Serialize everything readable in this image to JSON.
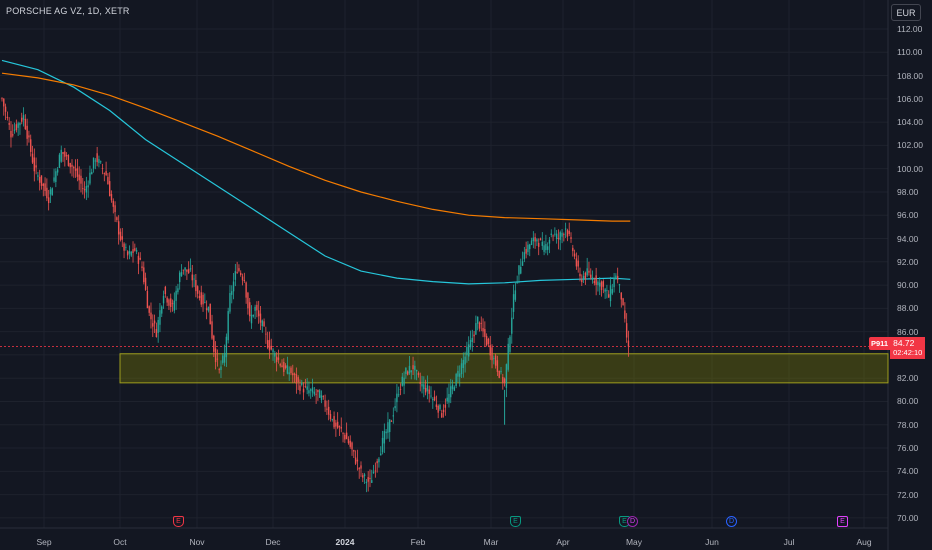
{
  "header": {
    "title": "PORSCHE AG VZ, 1D, XETR"
  },
  "currency_button": {
    "label": "EUR"
  },
  "price_tag": {
    "symbol": "P911",
    "price": "84.72",
    "countdown": "02:42:10"
  },
  "colors": {
    "up": "#26a69a",
    "down": "#ef5350",
    "sma_fast": "#26c6da",
    "sma_slow": "#f57c00",
    "zone": "#808000"
  },
  "chart_data": {
    "type": "candlestick",
    "symbol": "PORSCHE AG VZ",
    "interval": "1D",
    "exchange": "XETR",
    "currency": "EUR",
    "last_price": 84.72,
    "ylim": [
      69,
      113
    ],
    "y_ticks": [
      "112.00",
      "110.00",
      "108.00",
      "106.00",
      "104.00",
      "102.00",
      "100.00",
      "98.00",
      "96.00",
      "94.00",
      "92.00",
      "90.00",
      "88.00",
      "86.00",
      "84.00",
      "82.00",
      "80.00",
      "78.00",
      "76.00",
      "74.00",
      "72.00",
      "70.00"
    ],
    "x_ticks": [
      {
        "label": "Sep",
        "bold": false
      },
      {
        "label": "Oct",
        "bold": false
      },
      {
        "label": "Nov",
        "bold": false
      },
      {
        "label": "Dec",
        "bold": false
      },
      {
        "label": "2024",
        "bold": true
      },
      {
        "label": "Feb",
        "bold": false
      },
      {
        "label": "Mar",
        "bold": false
      },
      {
        "label": "Apr",
        "bold": false
      },
      {
        "label": "May",
        "bold": false
      },
      {
        "label": "Jun",
        "bold": false
      },
      {
        "label": "Jul",
        "bold": false
      },
      {
        "label": "Aug",
        "bold": false
      }
    ],
    "support_zone": [
      81.6,
      84.1
    ],
    "path_points": [
      [
        0,
        106.0
      ],
      [
        5,
        103.0
      ],
      [
        12,
        104.5
      ],
      [
        18,
        100.0
      ],
      [
        26,
        97.5
      ],
      [
        33,
        101.5
      ],
      [
        40,
        100.0
      ],
      [
        46,
        98.0
      ],
      [
        52,
        101.0
      ],
      [
        58,
        99.5
      ],
      [
        62,
        96.5
      ],
      [
        67,
        93.5
      ],
      [
        70,
        92.5
      ],
      [
        74,
        93.0
      ],
      [
        78,
        91.5
      ],
      [
        82,
        87.5
      ],
      [
        86,
        86.0
      ],
      [
        90,
        89.5
      ],
      [
        95,
        88.0
      ],
      [
        100,
        91.5
      ],
      [
        105,
        91.0
      ],
      [
        110,
        89.0
      ],
      [
        115,
        88.0
      ],
      [
        118,
        84.5
      ],
      [
        121,
        82.5
      ],
      [
        124,
        84.0
      ],
      [
        127,
        89.0
      ],
      [
        131,
        91.5
      ],
      [
        135,
        90.5
      ],
      [
        138,
        87.0
      ],
      [
        141,
        88.0
      ],
      [
        145,
        86.5
      ],
      [
        148,
        85.0
      ],
      [
        152,
        84.0
      ],
      [
        157,
        82.8
      ],
      [
        161,
        82.5
      ],
      [
        165,
        81.5
      ],
      [
        169,
        81.0
      ],
      [
        173,
        80.8
      ],
      [
        177,
        80.5
      ],
      [
        181,
        79.5
      ],
      [
        185,
        78.0
      ],
      [
        189,
        77.5
      ],
      [
        193,
        76.5
      ],
      [
        197,
        75.0
      ],
      [
        201,
        73.5
      ],
      [
        205,
        73.0
      ],
      [
        209,
        75.0
      ],
      [
        213,
        77.0
      ],
      [
        217,
        78.5
      ],
      [
        221,
        81.0
      ],
      [
        225,
        82.5
      ],
      [
        229,
        83.0
      ],
      [
        233,
        81.5
      ],
      [
        237,
        81.0
      ],
      [
        241,
        80.0
      ],
      [
        245,
        79.0
      ],
      [
        249,
        80.5
      ],
      [
        253,
        82.0
      ],
      [
        257,
        83.5
      ],
      [
        261,
        85.0
      ],
      [
        265,
        87.0
      ],
      [
        269,
        85.5
      ],
      [
        273,
        84.0
      ],
      [
        277,
        82.5
      ],
      [
        280,
        81.5
      ],
      [
        284,
        87.5
      ],
      [
        286,
        90.0
      ],
      [
        290,
        92.5
      ],
      [
        294,
        93.5
      ],
      [
        298,
        94.0
      ],
      [
        302,
        93.0
      ],
      [
        306,
        94.5
      ],
      [
        310,
        94.0
      ],
      [
        314,
        95.0
      ],
      [
        318,
        93.0
      ],
      [
        322,
        90.5
      ],
      [
        326,
        91.0
      ],
      [
        330,
        90.5
      ],
      [
        334,
        90.0
      ],
      [
        338,
        89.0
      ],
      [
        342,
        91.0
      ],
      [
        345,
        89.0
      ],
      [
        348,
        85.5
      ],
      [
        349,
        84.72
      ]
    ],
    "series": [
      {
        "name": "",
        "color": "#26c6da",
        "points": [
          [
            0,
            109.3
          ],
          [
            20,
            108.5
          ],
          [
            40,
            107.0
          ],
          [
            60,
            105.0
          ],
          [
            80,
            102.5
          ],
          [
            100,
            100.5
          ],
          [
            120,
            98.5
          ],
          [
            140,
            96.5
          ],
          [
            160,
            94.5
          ],
          [
            180,
            92.5
          ],
          [
            200,
            91.2
          ],
          [
            220,
            90.6
          ],
          [
            240,
            90.3
          ],
          [
            260,
            90.1
          ],
          [
            280,
            90.2
          ],
          [
            300,
            90.4
          ],
          [
            320,
            90.5
          ],
          [
            340,
            90.6
          ],
          [
            350,
            90.5
          ]
        ]
      },
      {
        "name": "",
        "color": "#f57c00",
        "points": [
          [
            0,
            108.2
          ],
          [
            20,
            107.8
          ],
          [
            40,
            107.2
          ],
          [
            60,
            106.3
          ],
          [
            80,
            105.2
          ],
          [
            100,
            104.0
          ],
          [
            120,
            102.8
          ],
          [
            140,
            101.5
          ],
          [
            160,
            100.2
          ],
          [
            180,
            99.0
          ],
          [
            200,
            98.0
          ],
          [
            220,
            97.2
          ],
          [
            240,
            96.5
          ],
          [
            260,
            96.0
          ],
          [
            280,
            95.8
          ],
          [
            300,
            95.7
          ],
          [
            320,
            95.6
          ],
          [
            340,
            95.5
          ],
          [
            350,
            95.5
          ]
        ]
      }
    ]
  },
  "events": [
    {
      "type": "earnings",
      "label": "E",
      "color": "earn-red"
    },
    {
      "type": "earnings",
      "label": "E",
      "color": "earn-green"
    },
    {
      "type": "earnings",
      "label": "E",
      "color": "earn-green"
    },
    {
      "type": "dividend",
      "label": "D",
      "color": "div-purple"
    },
    {
      "type": "dividend",
      "label": "D",
      "color": "div-blue"
    },
    {
      "type": "earnings",
      "label": "E",
      "color": "earn-purple"
    }
  ]
}
